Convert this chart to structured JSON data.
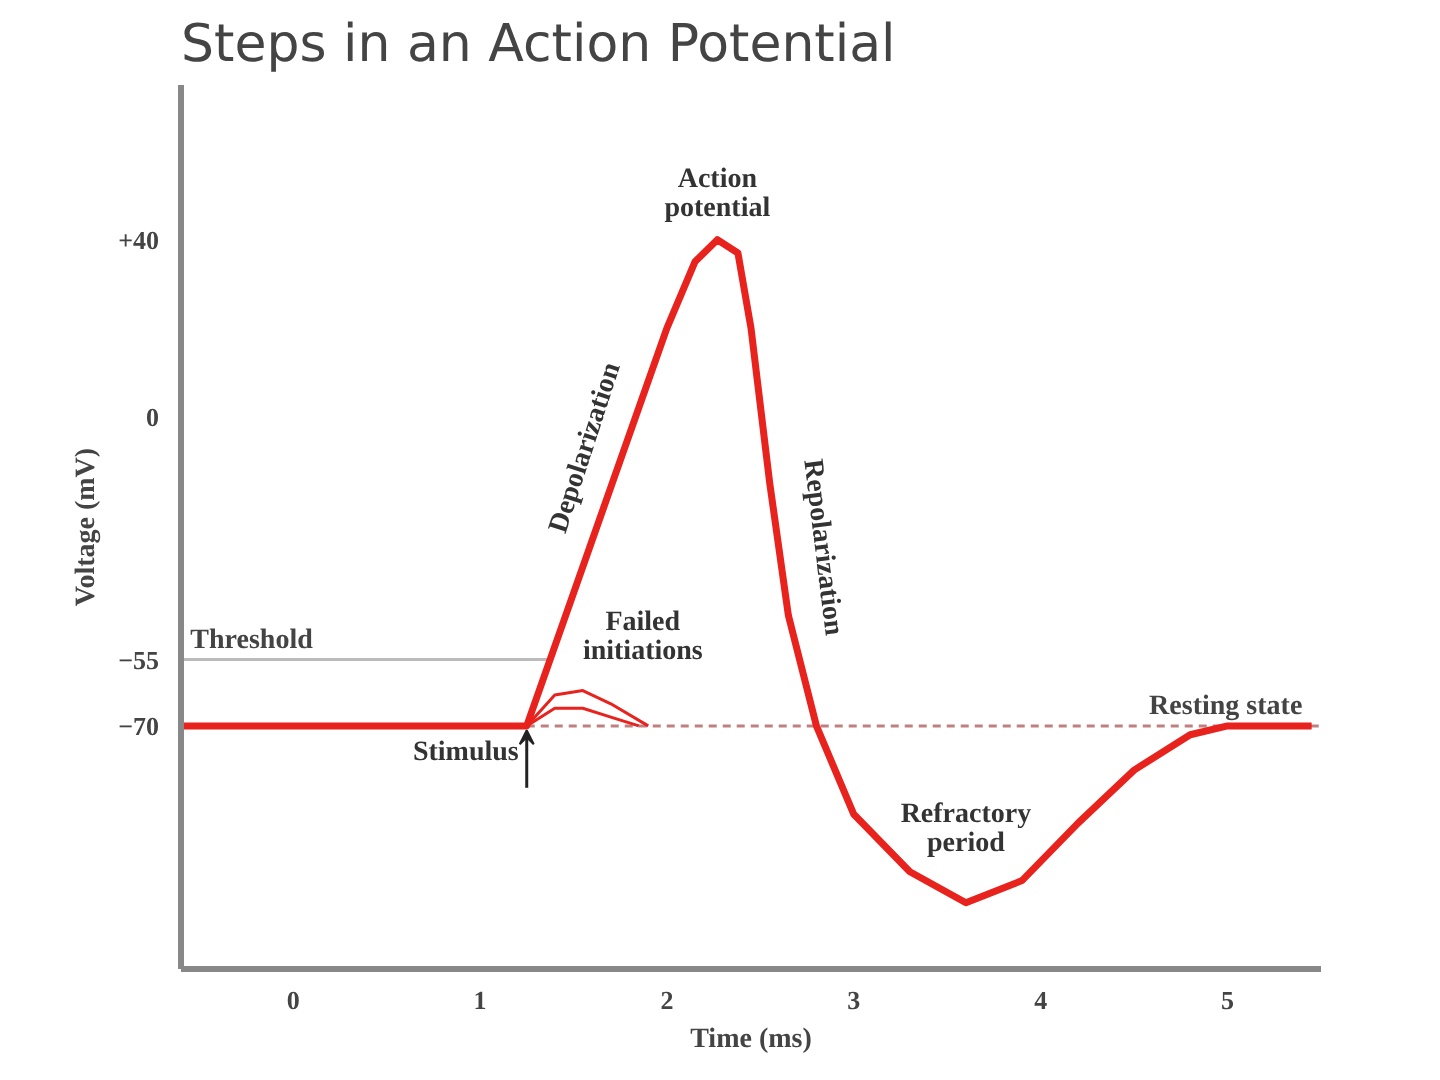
{
  "chart_data": {
    "type": "line",
    "title": "Steps in an Action Potential",
    "xlabel": "Time (ms)",
    "ylabel": "Voltage (mV)",
    "xlim": [
      -0.6,
      5.5
    ],
    "ylim": [
      -125,
      75
    ],
    "xticks": [
      0,
      1,
      2,
      3,
      4,
      5
    ],
    "yticks": [
      {
        "value": 40,
        "label": "+40"
      },
      0,
      -55,
      -70
    ],
    "series": [
      {
        "color": "#e8221c",
        "x": [
          -0.6,
          1.25,
          1.5,
          1.75,
          2.0,
          2.15,
          2.27,
          2.38,
          2.45,
          2.55,
          2.65,
          2.8,
          3.0,
          3.3,
          3.6,
          3.9,
          4.2,
          4.5,
          4.8,
          5.0,
          5.45
        ],
        "values": [
          -70,
          -70,
          -40,
          -10,
          20,
          35,
          40,
          37,
          20,
          -15,
          -45,
          -70,
          -90,
          -103,
          -110,
          -105,
          -92,
          -80,
          -72,
          -70,
          -70
        ]
      },
      {
        "color": "#e8221c",
        "x": [
          1.25,
          1.4,
          1.55,
          1.7,
          1.9
        ],
        "values": [
          -70,
          -63,
          -62,
          -65,
          -70
        ]
      },
      {
        "color": "#e8221c",
        "x": [
          1.25,
          1.4,
          1.55,
          1.7,
          1.85
        ],
        "values": [
          -70,
          -66,
          -66,
          -68,
          -70
        ]
      }
    ],
    "ref_lines": [
      {
        "axis": "y",
        "value": -55,
        "label": "Threshold",
        "color": "#bbbbbb",
        "line_style": "solid"
      },
      {
        "axis": "y",
        "value": -70,
        "label": "Resting state",
        "color": "#c08080",
        "line_style": "dashed"
      }
    ],
    "annotations": [
      {
        "text": "Action potential",
        "x": 2.27,
        "y": 40
      },
      {
        "text": "Depolarization",
        "x": 1.75,
        "y": -10
      },
      {
        "text": "Repolarization",
        "x": 2.6,
        "y": -30
      },
      {
        "text": "Failed initiations",
        "x": 1.55,
        "y": -62
      },
      {
        "text": "Refractory period",
        "x": 3.6,
        "y": -110
      },
      {
        "text": "Stimulus",
        "x": 1.25,
        "y": -70
      }
    ],
    "grid": false
  }
}
